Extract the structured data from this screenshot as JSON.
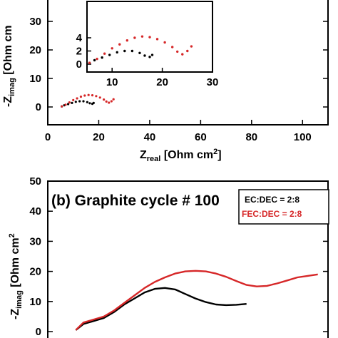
{
  "chart_data": [
    {
      "panel": "top",
      "type": "scatter",
      "xlabel_main": "Z",
      "xlabel_sub": "real",
      "xlabel_unit": "[Ohm cm",
      "xlabel_sup": "2",
      "xlabel_end": "]",
      "ylabel_main": "-Z",
      "ylabel_sub": "imag",
      "ylabel_unit": "[Ohm cm",
      "xlim": [
        0,
        110
      ],
      "ylim": [
        -5,
        35
      ],
      "x_ticks": [
        "0",
        "20",
        "40",
        "60",
        "80",
        "100"
      ],
      "y_ticks": [
        "0",
        "10",
        "20",
        "30"
      ],
      "series": [
        {
          "color": "#000000",
          "x": [
            5.5,
            6.5,
            8,
            9.5,
            11,
            12.5,
            14,
            15.5,
            16.5,
            17.5,
            18
          ],
          "y": [
            0.2,
            0.6,
            1.0,
            1.4,
            1.8,
            2.0,
            2.0,
            1.7,
            1.3,
            1.1,
            1.4
          ]
        },
        {
          "color": "#d62728",
          "x": [
            5.5,
            7,
            8.5,
            10,
            11.5,
            13,
            14.5,
            16,
            17.5,
            19,
            20.5,
            22,
            23,
            24,
            25,
            25.8
          ],
          "y": [
            0.2,
            0.8,
            1.6,
            2.4,
            3.0,
            3.6,
            4.0,
            4.2,
            4.1,
            3.8,
            3.3,
            2.6,
            1.9,
            1.5,
            2.0,
            2.7
          ]
        }
      ],
      "inset": {
        "xlim": [
          5,
          30
        ],
        "ylim": [
          -0.7,
          6.3
        ],
        "x_ticks": [
          "10",
          "20",
          "30"
        ],
        "y_ticks": [
          "0",
          "2",
          "4"
        ]
      }
    },
    {
      "panel": "bottom",
      "type": "line",
      "title": "(b) Graphite cycle # 100",
      "ylabel_main": "-Z",
      "ylabel_sub": "imag",
      "ylabel_unit": "[Ohm cm",
      "ylabel_sup": "2",
      "ylim": [
        0,
        50
      ],
      "y_ticks": [
        "0",
        "10",
        "20",
        "30",
        "40",
        "50"
      ],
      "x_range_implied": [
        0,
        55
      ],
      "legend": {
        "position": "top-right"
      },
      "series": [
        {
          "name": "EC:DEC = 2:8",
          "color": "#000000",
          "x": [
            5.5,
            7,
            9,
            11,
            13,
            15,
            17,
            19,
            21,
            23,
            25,
            27,
            29,
            31,
            33,
            35,
            37,
            39
          ],
          "y": [
            0.5,
            2.5,
            3.5,
            4.5,
            6.5,
            9.0,
            11.0,
            13.0,
            14.2,
            14.5,
            14.0,
            12.5,
            11.0,
            9.8,
            9.0,
            8.8,
            8.9,
            9.2
          ]
        },
        {
          "name": "FEC:DEC = 2:8",
          "color": "#d62728",
          "x": [
            5.5,
            7,
            9,
            11,
            13,
            15,
            17,
            19,
            21,
            23,
            25,
            27,
            29,
            31,
            33,
            35,
            37,
            39,
            41,
            43,
            45,
            47,
            49,
            51,
            53
          ],
          "y": [
            0.5,
            3.0,
            4.0,
            5.0,
            7.0,
            9.5,
            12.0,
            14.5,
            16.5,
            18.0,
            19.3,
            20.0,
            20.2,
            20.0,
            19.3,
            18.2,
            16.8,
            15.5,
            15.0,
            15.2,
            16.0,
            17.0,
            18.0,
            18.5,
            19.0
          ]
        }
      ]
    }
  ]
}
